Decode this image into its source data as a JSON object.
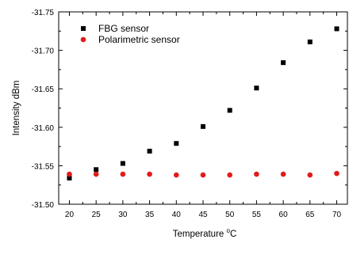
{
  "chart_data": {
    "type": "scatter",
    "xlabel": "Temperature",
    "xlabel_unit": "°C",
    "ylabel": "Intensity dBm",
    "xlim": [
      18,
      72
    ],
    "ylim": [
      -31.75,
      -31.5
    ],
    "y_reversed": true,
    "x_ticks": [
      20,
      25,
      30,
      35,
      40,
      45,
      50,
      55,
      60,
      65,
      70
    ],
    "y_ticks": [
      -31.75,
      -31.7,
      -31.65,
      -31.6,
      -31.55,
      -31.5
    ],
    "y_tick_labels": [
      "-31.75",
      "-31.70",
      "-31.65",
      "-31.60",
      "-31.55",
      "-31.50"
    ],
    "legend_position": "top-left",
    "series": [
      {
        "name": "FBG sensor",
        "marker": "square",
        "color": "#000000",
        "x": [
          20,
          25,
          30,
          35,
          40,
          45,
          50,
          55,
          60,
          65,
          70
        ],
        "y": [
          -31.534,
          -31.545,
          -31.553,
          -31.569,
          -31.579,
          -31.601,
          -31.622,
          -31.651,
          -31.684,
          -31.711,
          -31.728
        ]
      },
      {
        "name": "Polarimetric sensor",
        "marker": "circle",
        "color": "#e31a1a",
        "x": [
          20,
          25,
          30,
          35,
          40,
          45,
          50,
          55,
          60,
          65,
          70
        ],
        "y": [
          -31.539,
          -31.539,
          -31.539,
          -31.539,
          -31.538,
          -31.538,
          -31.538,
          -31.539,
          -31.539,
          -31.538,
          -31.54
        ]
      }
    ]
  }
}
